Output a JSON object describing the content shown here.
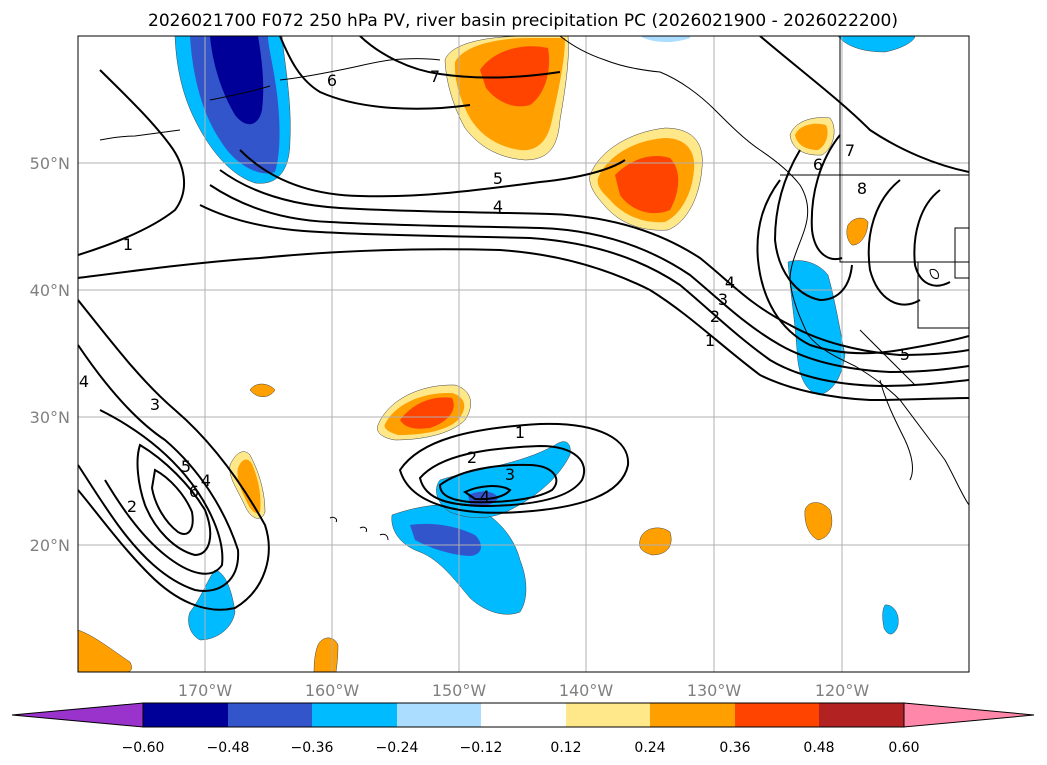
{
  "title": "2026021700 F072 250 hPa PV, river basin precipitation PC (2026021900 - 2026022200)",
  "lat_labels": [
    "50°N",
    "40°N",
    "30°N",
    "20°N"
  ],
  "lon_labels": [
    "170°W",
    "160°W",
    "150°W",
    "140°W",
    "130°W",
    "120°W"
  ],
  "colorbar": {
    "ticks": [
      "−0.60",
      "−0.48",
      "−0.36",
      "−0.24",
      "−0.12",
      "0.12",
      "0.24",
      "0.36",
      "0.48",
      "0.60"
    ],
    "colors": {
      "under": "#9933cc",
      "bins": [
        "#000099",
        "#3355cc",
        "#00bbff",
        "#aaddff",
        "#ffffff",
        "#ffe88a",
        "#ffa000",
        "#ff4400",
        "#b22222"
      ],
      "over": "#ff88aa"
    }
  },
  "contour_labels": [
    "1",
    "2",
    "3",
    "4",
    "5",
    "6",
    "7",
    "8"
  ],
  "colors": {
    "pos_light": "#ffe88a",
    "pos_mid": "#ffa000",
    "pos_strong": "#ff4400",
    "neg_light": "#aaddff",
    "neg_mid": "#00bbff",
    "neg_strong": "#3355cc",
    "neg_max": "#000099",
    "grid": "#b0b0b0",
    "contour": "#000000"
  }
}
